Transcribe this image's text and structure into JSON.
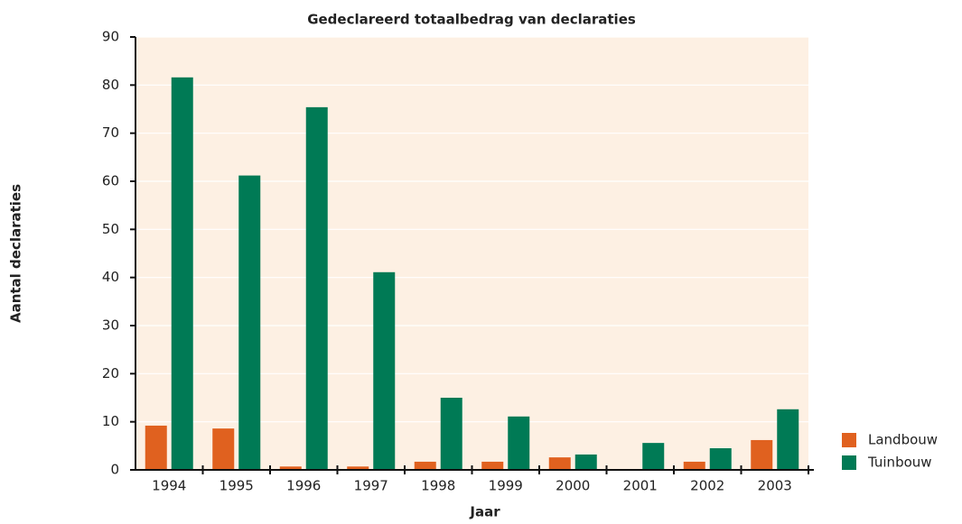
{
  "chart_data": {
    "type": "bar",
    "title": "Gedeclareerd totaalbedrag van declaraties",
    "x_label": "Jaar",
    "y_label": "Aantal declaraties",
    "categories": [
      "1994",
      "1995",
      "1996",
      "1997",
      "1998",
      "1999",
      "2000",
      "2001",
      "2002",
      "2003"
    ],
    "series": [
      {
        "name": "Landbouw",
        "color": "#e0611f",
        "values": [
          9.2,
          8.6,
          0.7,
          0.7,
          1.7,
          1.7,
          2.6,
          0,
          1.7,
          6.2
        ]
      },
      {
        "name": "Tuinbouw",
        "color": "#007a55",
        "values": [
          81.6,
          61.2,
          75.4,
          41.1,
          15,
          11.1,
          3.2,
          5.6,
          4.5,
          12.6
        ]
      }
    ],
    "ylim": [
      0,
      90
    ],
    "yticks": [
      0,
      10,
      20,
      30,
      40,
      50,
      60,
      70,
      80,
      90
    ],
    "grid": true,
    "legend": "right",
    "background": "#fdf0e3"
  }
}
